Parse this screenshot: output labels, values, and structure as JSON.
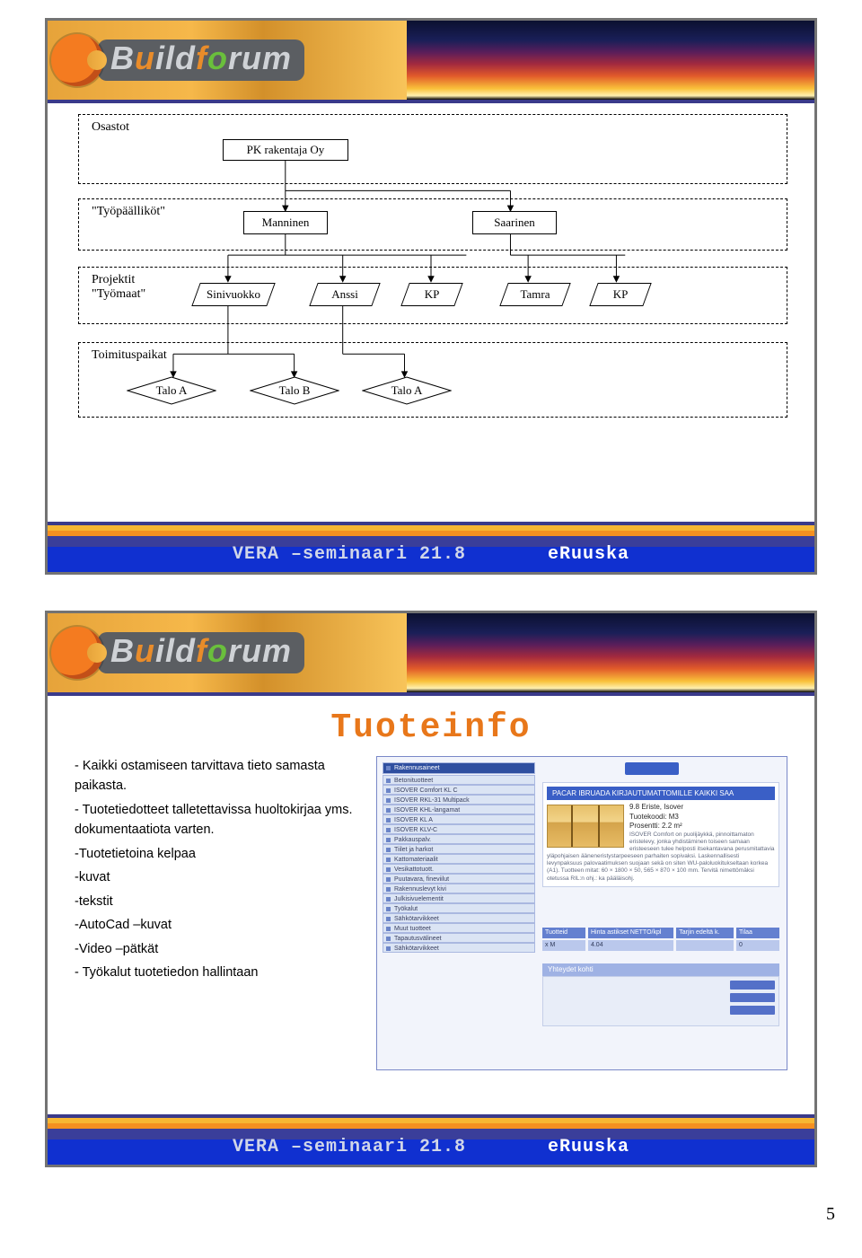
{
  "brand": {
    "text_html": "B<span class='accent'>u</span>ild<span class='accent'>f</span><span class='o'>o</span>rum"
  },
  "footer": {
    "left": "VERA –seminaari 21.8",
    "right": "eRuuska"
  },
  "pageNumber": "5",
  "slide1": {
    "sections": {
      "osastot": "Osastot",
      "tyopaallikot": "\"Työpäälliköt\"",
      "projektit": "Projektit\n\"Työmaat\"",
      "toimituspaikat": "Toimituspaikat"
    },
    "nodes": {
      "pk": "PK rakentaja Oy",
      "manninen": "Manninen",
      "saarinen": "Saarinen",
      "sinivuokko": "Sinivuokko",
      "anssi": "Anssi",
      "kp1": "KP",
      "tamra": "Tamra",
      "kp2": "KP",
      "taloA1": "Talo A",
      "taloB": "Talo B",
      "taloA2": "Talo A"
    }
  },
  "slide2": {
    "title": "Tuoteinfo",
    "bullets": [
      "- Kaikki ostamiseen tarvittava tieto samasta paikasta.",
      "- Tuotetiedotteet talletettavissa huoltokirjaa yms. dokumentaatiota varten.",
      "-Tuotetietoina kelpaa"
    ],
    "subBullets": [
      "-kuvat",
      "-tekstit",
      "-AutoCad –kuvat",
      "-Video –pätkät"
    ],
    "lastBullet": "- Työkalut tuotetiedon hallintaan",
    "shot": {
      "navHeader": "Rakennusaineet",
      "navItems": [
        "Betonituotteet",
        "ISOVER Comfort KL C",
        "ISOVER RKL-31 Multipack",
        "ISOVER KHL-langamat",
        "ISOVER KL A",
        "ISOVER KLV-C",
        "Pakkauspalv.",
        "Tiilet ja harkot",
        "Kattomateriaalit",
        "Vesikattotuott.",
        "Puutavara, fineviilut",
        "Rakennuslevyt kivi",
        "Julkisivuelementit",
        "Työkalut",
        "Sähkötarvikkeet",
        "Muut tuotteet",
        "Tapautusvälineet",
        "Sähkötarvikkeet"
      ],
      "panelTitle": "PACAR IBRUADA KIRJAUTUMATTOMILLE KAIKKI SAA",
      "panelSubs": [
        "9.8 Eriste, Isover",
        "Tuotekoodi: M3",
        "Prosentti: 2.2 m²"
      ],
      "para": "ISOVER Comfort on puolijäykkä, pinnoittamaton eristelevy, jonka yhdistäminen toiseen samaan eristeeseen tulee helposti itsekantavana perusmitattavia yläpohjaisen ääneneristystarpeeseen parhaiten sopivaksi. Laskennallisesti levynpaksuus palovaatimuksen suojaan sekä on siten WU-paloluokitukseltaan korkea (A1). Tuotteen mitat: 60 × 1800 × 50, 565 × 870 × 100 mm. Tervitä nimettömäksi otetussa RIL:n ohj.: ka pääläisohj.",
      "tableHeader": [
        "Tuotteid",
        "Hinta astikset NETTO/kpl",
        "Tarjin edeltä k.",
        "Tilaa"
      ],
      "tableRow": [
        "x M",
        "4.04",
        "",
        "0"
      ],
      "lowerHeader": "Yhteydet kohti"
    }
  }
}
